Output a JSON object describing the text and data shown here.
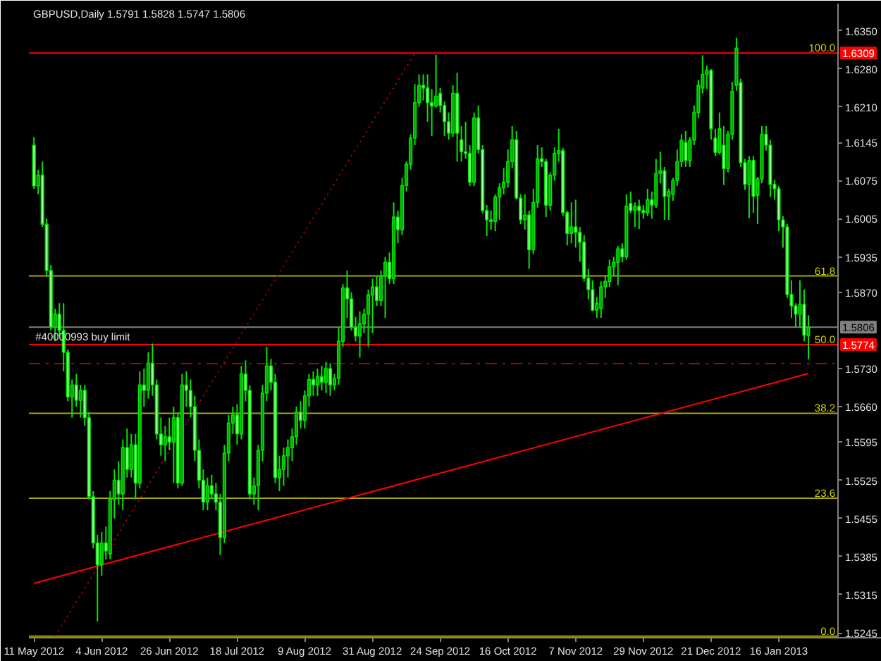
{
  "chart_data": {
    "type": "candlestick",
    "title": "GBPUSD,Daily 1.5791 1.5828 1.5747 1.5806",
    "categories": [
      "11 May 2012",
      null,
      null,
      null,
      null,
      null,
      null,
      null,
      null,
      null,
      null,
      null,
      null,
      null,
      null,
      null,
      "4 Jun 2012",
      null,
      null,
      null,
      null,
      null,
      null,
      null,
      null,
      null,
      null,
      null,
      null,
      null,
      null,
      null,
      "26 Jun 2012",
      null,
      null,
      null,
      null,
      null,
      null,
      null,
      null,
      null,
      null,
      null,
      null,
      null,
      null,
      null,
      "18 Jul 2012",
      null,
      null,
      null,
      null,
      null,
      null,
      null,
      null,
      null,
      null,
      null,
      null,
      null,
      null,
      null,
      "9 Aug 2012",
      null,
      null,
      null,
      null,
      null,
      null,
      null,
      null,
      null,
      null,
      null,
      null,
      null,
      null,
      null,
      "31 Aug 2012",
      null,
      null,
      null,
      null,
      null,
      null,
      null,
      null,
      null,
      null,
      null,
      null,
      null,
      null,
      null,
      "24 Sep 2012",
      null,
      null,
      null,
      null,
      null,
      null,
      null,
      null,
      null,
      null,
      null,
      null,
      null,
      null,
      null,
      "16 Oct 2012",
      null,
      null,
      null,
      null,
      null,
      null,
      null,
      null,
      null,
      null,
      null,
      null,
      null,
      null,
      null,
      "7 Nov 2012",
      null,
      null,
      null,
      null,
      null,
      null,
      null,
      null,
      null,
      null,
      null,
      null,
      null,
      null,
      null,
      "29 Nov 2012",
      null,
      null,
      null,
      null,
      null,
      null,
      null,
      null,
      null,
      null,
      null,
      null,
      null,
      null,
      null,
      "21 Dec 2012",
      null,
      null,
      null,
      null,
      null,
      null,
      null,
      null,
      null,
      null,
      null,
      null,
      null,
      null,
      null,
      "16 Jan 2013",
      null,
      null,
      null,
      null,
      null,
      null,
      null
    ],
    "ohlc": [
      [
        1.614,
        1.6155,
        1.606,
        1.6065
      ],
      [
        1.6065,
        1.6095,
        1.605,
        1.6085
      ],
      [
        1.6085,
        1.611,
        1.599,
        1.5995
      ],
      [
        1.5995,
        1.6005,
        1.59,
        1.591
      ],
      [
        1.591,
        1.592,
        1.58,
        1.5806
      ],
      [
        1.5806,
        1.584,
        1.578,
        1.583
      ],
      [
        1.583,
        1.585,
        1.579,
        1.58
      ],
      [
        1.58,
        1.585,
        1.5725,
        1.576
      ],
      [
        1.576,
        1.5765,
        1.567,
        1.5678
      ],
      [
        1.5678,
        1.571,
        1.564,
        1.57
      ],
      [
        1.57,
        1.572,
        1.566,
        1.5672
      ],
      [
        1.5672,
        1.57,
        1.564,
        1.569
      ],
      [
        1.569,
        1.57,
        1.5625,
        1.564
      ],
      [
        1.564,
        1.565,
        1.549,
        1.5495
      ],
      [
        1.5495,
        1.5505,
        1.54,
        1.541
      ],
      [
        1.541,
        1.5425,
        1.5266,
        1.537
      ],
      [
        1.537,
        1.543,
        1.535,
        1.541
      ],
      [
        1.541,
        1.544,
        1.538,
        1.5395
      ],
      [
        1.539,
        1.5505,
        1.538,
        1.549
      ],
      [
        1.549,
        1.5545,
        1.5455,
        1.5525
      ],
      [
        1.5525,
        1.556,
        1.548,
        1.55
      ],
      [
        1.55,
        1.56,
        1.547,
        1.5585
      ],
      [
        1.5585,
        1.562,
        1.553,
        1.5545
      ],
      [
        1.5545,
        1.561,
        1.553,
        1.559
      ],
      [
        1.559,
        1.561,
        1.549,
        1.552
      ],
      [
        1.552,
        1.5725,
        1.551,
        1.57
      ],
      [
        1.57,
        1.573,
        1.566,
        1.569
      ],
      [
        1.569,
        1.576,
        1.5675,
        1.574
      ],
      [
        1.574,
        1.5776,
        1.568,
        1.57
      ],
      [
        1.57,
        1.571,
        1.56,
        1.561
      ],
      [
        1.561,
        1.564,
        1.557,
        1.559
      ],
      [
        1.559,
        1.5625,
        1.556,
        1.5605
      ],
      [
        1.5605,
        1.564,
        1.558,
        1.5595
      ],
      [
        1.5595,
        1.566,
        1.552,
        1.564
      ],
      [
        1.564,
        1.565,
        1.551,
        1.552
      ],
      [
        1.552,
        1.572,
        1.5515,
        1.57
      ],
      [
        1.57,
        1.5725,
        1.566,
        1.569
      ],
      [
        1.569,
        1.571,
        1.564,
        1.566
      ],
      [
        1.566,
        1.568,
        1.556,
        1.558
      ],
      [
        1.558,
        1.56,
        1.551,
        1.5525
      ],
      [
        1.5525,
        1.5545,
        1.547,
        1.5485
      ],
      [
        1.5485,
        1.553,
        1.547,
        1.5515
      ],
      [
        1.5515,
        1.5535,
        1.549,
        1.55
      ],
      [
        1.55,
        1.552,
        1.547,
        1.5485
      ],
      [
        1.5485,
        1.55,
        1.5388,
        1.542
      ],
      [
        1.542,
        1.559,
        1.541,
        1.5575
      ],
      [
        1.5575,
        1.5645,
        1.556,
        1.563
      ],
      [
        1.563,
        1.566,
        1.561,
        1.5645
      ],
      [
        1.5645,
        1.5665,
        1.559,
        1.561
      ],
      [
        1.561,
        1.5735,
        1.56,
        1.572
      ],
      [
        1.572,
        1.5745,
        1.567,
        1.569
      ],
      [
        1.569,
        1.57,
        1.549,
        1.55
      ],
      [
        1.55,
        1.553,
        1.548,
        1.5515
      ],
      [
        1.5515,
        1.559,
        1.547,
        1.558
      ],
      [
        1.558,
        1.57,
        1.556,
        1.5685
      ],
      [
        1.5685,
        1.577,
        1.567,
        1.5735
      ],
      [
        1.5735,
        1.5748,
        1.569,
        1.5705
      ],
      [
        1.5705,
        1.572,
        1.552,
        1.553
      ],
      [
        1.553,
        1.557,
        1.5505,
        1.5545
      ],
      [
        1.5545,
        1.5585,
        1.5515,
        1.557
      ],
      [
        1.557,
        1.56,
        1.553,
        1.5585
      ],
      [
        1.5585,
        1.562,
        1.556,
        1.5605
      ],
      [
        1.5605,
        1.566,
        1.559,
        1.565
      ],
      [
        1.565,
        1.567,
        1.562,
        1.5635
      ],
      [
        1.5635,
        1.569,
        1.562,
        1.568
      ],
      [
        1.568,
        1.572,
        1.566,
        1.571
      ],
      [
        1.571,
        1.5725,
        1.568,
        1.57
      ],
      [
        1.57,
        1.573,
        1.568,
        1.5715
      ],
      [
        1.5715,
        1.5735,
        1.569,
        1.5705
      ],
      [
        1.5705,
        1.5742,
        1.5685,
        1.573
      ],
      [
        1.573,
        1.574,
        1.568,
        1.57
      ],
      [
        1.57,
        1.572,
        1.569,
        1.5712
      ],
      [
        1.5712,
        1.5806,
        1.57,
        1.578
      ],
      [
        1.578,
        1.5885,
        1.577,
        1.5878
      ],
      [
        1.5878,
        1.591,
        1.5823,
        1.5858
      ],
      [
        1.5858,
        1.587,
        1.58,
        1.5806
      ],
      [
        1.5806,
        1.5825,
        1.578,
        1.579
      ],
      [
        1.579,
        1.5835,
        1.575,
        1.5812
      ],
      [
        1.5812,
        1.584,
        1.5795,
        1.583
      ],
      [
        1.583,
        1.5875,
        1.577,
        1.5865
      ],
      [
        1.5865,
        1.5895,
        1.5795,
        1.588
      ],
      [
        1.588,
        1.59,
        1.5845,
        1.5855
      ],
      [
        1.5855,
        1.591,
        1.5845,
        1.59
      ],
      [
        1.59,
        1.5935,
        1.5823,
        1.5925
      ],
      [
        1.5925,
        1.5943,
        1.5885,
        1.5895
      ],
      [
        1.5895,
        1.6035,
        1.5885,
        1.6008
      ],
      [
        1.6008,
        1.602,
        1.596,
        1.5985
      ],
      [
        1.5985,
        1.608,
        1.5975,
        1.6066
      ],
      [
        1.6066,
        1.611,
        1.6055,
        1.6105
      ],
      [
        1.6105,
        1.616,
        1.6095,
        1.6153
      ],
      [
        1.6153,
        1.6252,
        1.614,
        1.6218
      ],
      [
        1.6218,
        1.627,
        1.621,
        1.625
      ],
      [
        1.625,
        1.627,
        1.6222,
        1.6245
      ],
      [
        1.6245,
        1.627,
        1.6183,
        1.6218
      ],
      [
        1.6218,
        1.6243,
        1.6157,
        1.6212
      ],
      [
        1.6212,
        1.6306,
        1.6209,
        1.623
      ],
      [
        1.6235,
        1.6245,
        1.62,
        1.6213
      ],
      [
        1.6213,
        1.622,
        1.6157,
        1.6183
      ],
      [
        1.6183,
        1.62,
        1.615,
        1.6162
      ],
      [
        1.6162,
        1.625,
        1.6155,
        1.6235
      ],
      [
        1.6235,
        1.6273,
        1.611,
        1.6162
      ],
      [
        1.615,
        1.6175,
        1.611,
        1.6128
      ],
      [
        1.6128,
        1.6183,
        1.6115,
        1.6125
      ],
      [
        1.6125,
        1.614,
        1.6065,
        1.6072
      ],
      [
        1.6072,
        1.62,
        1.6065,
        1.619
      ],
      [
        1.619,
        1.6213,
        1.6125,
        1.6132
      ],
      [
        1.6132,
        1.614,
        1.6015,
        1.602
      ],
      [
        1.602,
        1.603,
        1.5973,
        1.6003
      ],
      [
        1.6003,
        1.602,
        1.5985,
        1.6
      ],
      [
        1.6,
        1.605,
        1.5982,
        1.6045
      ],
      [
        1.6045,
        1.607,
        1.6003,
        1.6062
      ],
      [
        1.6062,
        1.6098,
        1.605,
        1.6072
      ],
      [
        1.6072,
        1.6132,
        1.6062,
        1.611
      ],
      [
        1.611,
        1.6175,
        1.6098,
        1.615
      ],
      [
        1.615,
        1.6166,
        1.604,
        1.6043
      ],
      [
        1.6043,
        1.605,
        1.5995,
        1.6003
      ],
      [
        1.6003,
        1.605,
        1.5985,
        1.6012
      ],
      [
        1.6012,
        1.602,
        1.5913,
        1.5948
      ],
      [
        1.5948,
        1.606,
        1.594,
        1.6035
      ],
      [
        1.6035,
        1.614,
        1.6025,
        1.6115
      ],
      [
        1.6115,
        1.6136,
        1.61,
        1.611
      ],
      [
        1.611,
        1.6115,
        1.6008,
        1.603
      ],
      [
        1.603,
        1.609,
        1.602,
        1.6085
      ],
      [
        1.6085,
        1.6136,
        1.6075,
        1.6125
      ],
      [
        1.6125,
        1.617,
        1.611,
        1.613
      ],
      [
        1.613,
        1.6135,
        1.601,
        1.6016
      ],
      [
        1.6016,
        1.602,
        1.5956,
        1.5978
      ],
      [
        1.5978,
        1.6035,
        1.596,
        1.599
      ],
      [
        1.599,
        1.604,
        1.5952,
        1.598
      ],
      [
        1.598,
        1.599,
        1.5926,
        1.5962
      ],
      [
        1.5962,
        1.5975,
        1.589,
        1.5896
      ],
      [
        1.5896,
        1.5913,
        1.5857,
        1.5875
      ],
      [
        1.5875,
        1.5892,
        1.5835,
        1.5837
      ],
      [
        1.5837,
        1.5862,
        1.5823,
        1.585
      ],
      [
        1.584,
        1.589,
        1.5823,
        1.588
      ],
      [
        1.588,
        1.59,
        1.586,
        1.589
      ],
      [
        1.589,
        1.593,
        1.588,
        1.5917
      ],
      [
        1.5917,
        1.5935,
        1.59,
        1.5925
      ],
      [
        1.5925,
        1.5955,
        1.5883,
        1.595
      ],
      [
        1.595,
        1.596,
        1.5925,
        1.5935
      ],
      [
        1.5935,
        1.605,
        1.593,
        1.6028
      ],
      [
        1.6033,
        1.6055,
        1.6015,
        1.602
      ],
      [
        1.602,
        1.6035,
        1.599,
        1.6028
      ],
      [
        1.6028,
        1.604,
        1.5986,
        1.602
      ],
      [
        1.602,
        1.603,
        1.6005,
        1.6016
      ],
      [
        1.6016,
        1.606,
        1.601,
        1.604
      ],
      [
        1.604,
        1.6055,
        1.6005,
        1.603
      ],
      [
        1.603,
        1.6115,
        1.6025,
        1.6088
      ],
      [
        1.6088,
        1.6128,
        1.607,
        1.6093
      ],
      [
        1.6093,
        1.61,
        1.6003,
        1.6046
      ],
      [
        1.6046,
        1.606,
        1.6003,
        1.6055
      ],
      [
        1.605,
        1.608,
        1.6038,
        1.6075
      ],
      [
        1.6075,
        1.6132,
        1.6065,
        1.611
      ],
      [
        1.611,
        1.616,
        1.61,
        1.6149
      ],
      [
        1.6145,
        1.6166,
        1.61,
        1.6112
      ],
      [
        1.6112,
        1.6155,
        1.61,
        1.6149
      ],
      [
        1.6149,
        1.6213,
        1.614,
        1.62
      ],
      [
        1.62,
        1.626,
        1.619,
        1.625
      ],
      [
        1.6245,
        1.6305,
        1.6235,
        1.627
      ],
      [
        1.627,
        1.6286,
        1.6243,
        1.6277
      ],
      [
        1.6277,
        1.628,
        1.615,
        1.617
      ],
      [
        1.6153,
        1.617,
        1.612,
        1.6127
      ],
      [
        1.6127,
        1.62,
        1.6123,
        1.617
      ],
      [
        1.614,
        1.6175,
        1.6067,
        1.6097
      ],
      [
        1.6097,
        1.6166,
        1.609,
        1.616
      ],
      [
        1.616,
        1.6256,
        1.615,
        1.6239
      ],
      [
        1.625,
        1.6337,
        1.624,
        1.6318
      ],
      [
        1.6255,
        1.6262,
        1.61,
        1.6108
      ],
      [
        1.6108,
        1.6115,
        1.6058,
        1.6068
      ],
      [
        1.6068,
        1.612,
        1.6006,
        1.6112
      ],
      [
        1.6112,
        1.612,
        1.6016,
        1.6046
      ],
      [
        1.6048,
        1.6082,
        1.5995,
        1.6078
      ],
      [
        1.6078,
        1.6175,
        1.607,
        1.616
      ],
      [
        1.616,
        1.6175,
        1.613,
        1.614
      ],
      [
        1.614,
        1.615,
        1.6045,
        1.6068
      ],
      [
        1.6068,
        1.6076,
        1.604,
        1.606
      ],
      [
        1.606,
        1.6065,
        1.5982,
        1.6003
      ],
      [
        1.6003,
        1.601,
        1.5952,
        1.599
      ],
      [
        1.599,
        1.5995,
        1.586,
        1.5866
      ],
      [
        1.5866,
        1.5892,
        1.5823,
        1.5845
      ],
      [
        1.5845,
        1.585,
        1.5806,
        1.583
      ],
      [
        1.583,
        1.5892,
        1.5806,
        1.5848
      ],
      [
        1.5848,
        1.5875,
        1.578,
        1.5791
      ],
      [
        1.5791,
        1.5828,
        1.5747,
        1.5806
      ]
    ],
    "color": "#00e600",
    "colors": [
      "#a0ffa0",
      "#00a000",
      "#a0ffa0",
      "#a0ffa0",
      "#a0ffa0",
      "#00a000",
      "#a0ffa0",
      "#a0ffa0",
      "#a0ffa0",
      "#00a000",
      "#a0ffa0",
      "#00a000",
      "#a0ffa0",
      "#a0ffa0",
      "#a0ffa0",
      "#a0ffa0",
      "#00a000",
      "#a0ffa0",
      "#00a000",
      "#00a000",
      "#a0ffa0",
      "#00a000",
      "#a0ffa0",
      "#00a000",
      "#a0ffa0",
      "#00a000",
      "#a0ffa0",
      "#00a000",
      "#a0ffa0",
      "#a0ffa0",
      "#a0ffa0",
      "#00a000",
      "#a0ffa0",
      "#00a000",
      "#a0ffa0",
      "#00a000",
      "#a0ffa0",
      "#a0ffa0",
      "#a0ffa0",
      "#a0ffa0",
      "#a0ffa0",
      "#00a000",
      "#a0ffa0",
      "#a0ffa0",
      "#a0ffa0",
      "#00a000",
      "#00a000",
      "#00a000",
      "#a0ffa0",
      "#00a000",
      "#a0ffa0",
      "#a0ffa0",
      "#00a000",
      "#00a000",
      "#00a000",
      "#00a000",
      "#a0ffa0",
      "#a0ffa0",
      "#00a000",
      "#00a000",
      "#00a000",
      "#00a000",
      "#00a000",
      "#a0ffa0",
      "#00a000",
      "#00a000",
      "#a0ffa0",
      "#00a000",
      "#a0ffa0",
      "#00a000",
      "#a0ffa0",
      "#00a000",
      "#00a000",
      "#00a000",
      "#a0ffa0",
      "#a0ffa0",
      "#a0ffa0",
      "#00a000",
      "#00a000",
      "#00a000",
      "#00a000",
      "#a0ffa0",
      "#00a000",
      "#00a000",
      "#a0ffa0",
      "#00a000",
      "#a0ffa0",
      "#00a000",
      "#00a000",
      "#00a000",
      "#00a000",
      "#00a000",
      "#a0ffa0",
      "#a0ffa0",
      "#a0ffa0",
      "#00a000",
      "#a0ffa0",
      "#a0ffa0",
      "#a0ffa0",
      "#00a000",
      "#a0ffa0",
      "#a0ffa0",
      "#a0ffa0",
      "#a0ffa0",
      "#00a000",
      "#a0ffa0",
      "#a0ffa0",
      "#a0ffa0",
      "#a0ffa0",
      "#00a000",
      "#00a000",
      "#00a000",
      "#00a000",
      "#00a000",
      "#a0ffa0",
      "#a0ffa0",
      "#00a000",
      "#a0ffa0",
      "#00a000",
      "#00a000",
      "#a0ffa0",
      "#a0ffa0",
      "#00a000",
      "#00a000",
      "#00a000",
      "#a0ffa0",
      "#a0ffa0",
      "#00a000",
      "#a0ffa0",
      "#a0ffa0",
      "#a0ffa0",
      "#a0ffa0",
      "#a0ffa0",
      "#00a000",
      "#00a000",
      "#00a000",
      "#00a000",
      "#00a000",
      "#00a000",
      "#a0ffa0",
      "#00a000",
      "#a0ffa0",
      "#00a000",
      "#a0ffa0",
      "#a0ffa0",
      "#00a000",
      "#a0ffa0",
      "#00a000",
      "#00a000",
      "#a0ffa0",
      "#00a000",
      "#00a000",
      "#00a000",
      "#00a000",
      "#a0ffa0",
      "#00a000",
      "#00a000",
      "#00a000",
      "#00a000",
      "#00a000",
      "#a0ffa0",
      "#a0ffa0",
      "#00a000",
      "#a0ffa0",
      "#00a000",
      "#00a000",
      "#00a000",
      "#a0ffa0",
      "#a0ffa0",
      "#00a000",
      "#a0ffa0",
      "#00a000",
      "#00a000",
      "#a0ffa0",
      "#a0ffa0",
      "#a0ffa0",
      "#a0ffa0",
      "#a0ffa0",
      "#a0ffa0",
      "#a0ffa0",
      "#a0ffa0",
      "#00a000",
      "#a0ffa0",
      "#00a000"
    ],
    "series": [
      {
        "type": "line",
        "color": "#ff0000",
        "values": [
          1.5336,
          null,
          null,
          null,
          null,
          null,
          null,
          null,
          null,
          null,
          null,
          null,
          null,
          null,
          null,
          null,
          null,
          null,
          null,
          null,
          null,
          null,
          null,
          null,
          null,
          null,
          null,
          null,
          null,
          null,
          null,
          null,
          null,
          null,
          null,
          null,
          null,
          null,
          null,
          null,
          null,
          null,
          null,
          null,
          null,
          null,
          null,
          null,
          null,
          null,
          null,
          null,
          null,
          null,
          null,
          null,
          null,
          null,
          null,
          null,
          null,
          null,
          null,
          null,
          null,
          null,
          null,
          null,
          null,
          null,
          null,
          null,
          null,
          null,
          null,
          null,
          null,
          null,
          null,
          null,
          null,
          null,
          null,
          null,
          null,
          null,
          null,
          null,
          null,
          null,
          null,
          null,
          null,
          null,
          null,
          null,
          null,
          null,
          null,
          null,
          null,
          null,
          null,
          null,
          null,
          null,
          null,
          null,
          null,
          null,
          null,
          null,
          null,
          null,
          null,
          null,
          null,
          null,
          null,
          null,
          null,
          null,
          null,
          null,
          null,
          null,
          null,
          null,
          null,
          null,
          null,
          null,
          null,
          null,
          null,
          null,
          null,
          null,
          null,
          null,
          null,
          null,
          null,
          null,
          null,
          null,
          null,
          null,
          null,
          null,
          null,
          null,
          null,
          null,
          null,
          null,
          null,
          null,
          null,
          null,
          null,
          null,
          null,
          null,
          null,
          null,
          null,
          null,
          null,
          null,
          null,
          null,
          null,
          null,
          null,
          null,
          null,
          null,
          null,
          null,
          null,
          null,
          null,
          1.5721
        ]
      },
      {
        "type": "line",
        "color": "#c00000",
        "line_style": "dotted",
        "values": [
          null,
          null,
          null,
          null,
          null,
          1.5239,
          null,
          null,
          null,
          null,
          null,
          null,
          null,
          null,
          null,
          null,
          null,
          null,
          null,
          null,
          null,
          null,
          null,
          null,
          null,
          null,
          null,
          null,
          null,
          null,
          null,
          null,
          null,
          null,
          null,
          null,
          null,
          null,
          null,
          null,
          null,
          null,
          null,
          null,
          null,
          null,
          null,
          null,
          null,
          null,
          null,
          null,
          null,
          null,
          null,
          null,
          null,
          null,
          null,
          null,
          null,
          null,
          null,
          null,
          null,
          null,
          null,
          null,
          null,
          null,
          null,
          null,
          null,
          null,
          null,
          null,
          null,
          null,
          null,
          null,
          null,
          null,
          null,
          null,
          null,
          null,
          null,
          null,
          null,
          null,
          1.6309,
          null,
          null,
          null,
          null,
          null,
          null,
          null,
          null,
          null,
          null,
          null,
          null,
          null,
          null,
          null,
          null,
          null,
          null,
          null,
          null,
          null,
          null,
          null,
          null,
          null,
          null,
          null,
          null,
          null,
          null,
          null,
          null,
          null,
          null,
          null,
          null,
          null,
          null,
          null,
          null,
          null,
          null,
          null,
          null,
          null,
          null,
          null,
          null,
          null,
          null,
          null,
          null,
          null,
          null,
          null,
          null,
          null,
          null,
          null,
          null,
          null,
          null,
          null,
          null,
          null,
          null,
          null,
          null,
          null,
          null,
          null,
          null,
          null,
          null,
          null,
          null,
          null,
          null,
          null,
          null,
          null,
          null,
          null,
          null,
          null,
          null,
          null,
          null,
          null,
          null,
          null,
          null,
          null
        ]
      }
    ],
    "ylim": [
      1.5236,
      1.64
    ],
    "yticks": [
      {
        "value": 1.635,
        "label": "1.6350"
      },
      {
        "value": 1.628,
        "label": "1.6280"
      },
      {
        "value": 1.621,
        "label": "1.6210"
      },
      1.6145,
      1.6075,
      1.6005,
      1.5935,
      {
        "value": 1.587,
        "label": "1.5870"
      },
      {
        "value": 1.573,
        "label": "1.5730"
      },
      {
        "value": 1.566,
        "label": "1.5660"
      },
      1.5595,
      1.5525,
      1.5455,
      1.5385,
      1.5315,
      1.5245
    ],
    "ref_lines": [
      {
        "axis": "y",
        "value": 1.6309,
        "label": "1.6309",
        "color": "#ff0000"
      },
      {
        "axis": "y",
        "value": 1.59,
        "color": "#a8a800"
      },
      {
        "axis": "y",
        "value": 1.5806,
        "label": "1.5806",
        "color": "#808080"
      },
      {
        "axis": "y",
        "value": 1.5774,
        "label": "1.5774",
        "color": "#ff0000"
      },
      {
        "axis": "y",
        "value": 1.5739,
        "color": "#b00000",
        "line_style": "dashed"
      },
      {
        "axis": "y",
        "value": 1.5648,
        "color": "#a8a800"
      },
      {
        "axis": "y",
        "value": 1.5492,
        "color": "#a8a800"
      },
      {
        "axis": "y",
        "value": 1.5239,
        "color": "#a8a800"
      }
    ],
    "annotations": [
      {
        "text": "100.0",
        "y": 1.6309
      },
      {
        "text": "61.8",
        "y": 1.59
      },
      {
        "text": "50.0",
        "y": 1.5774
      },
      {
        "text": "38.2",
        "y": 1.5648
      },
      {
        "text": "23.6",
        "y": 1.5492
      },
      {
        "text": "0.0",
        "y": 1.5239
      },
      {
        "text": "#40000993 buy limit",
        "x": "11 May 2012",
        "y": 1.5774
      }
    ]
  }
}
